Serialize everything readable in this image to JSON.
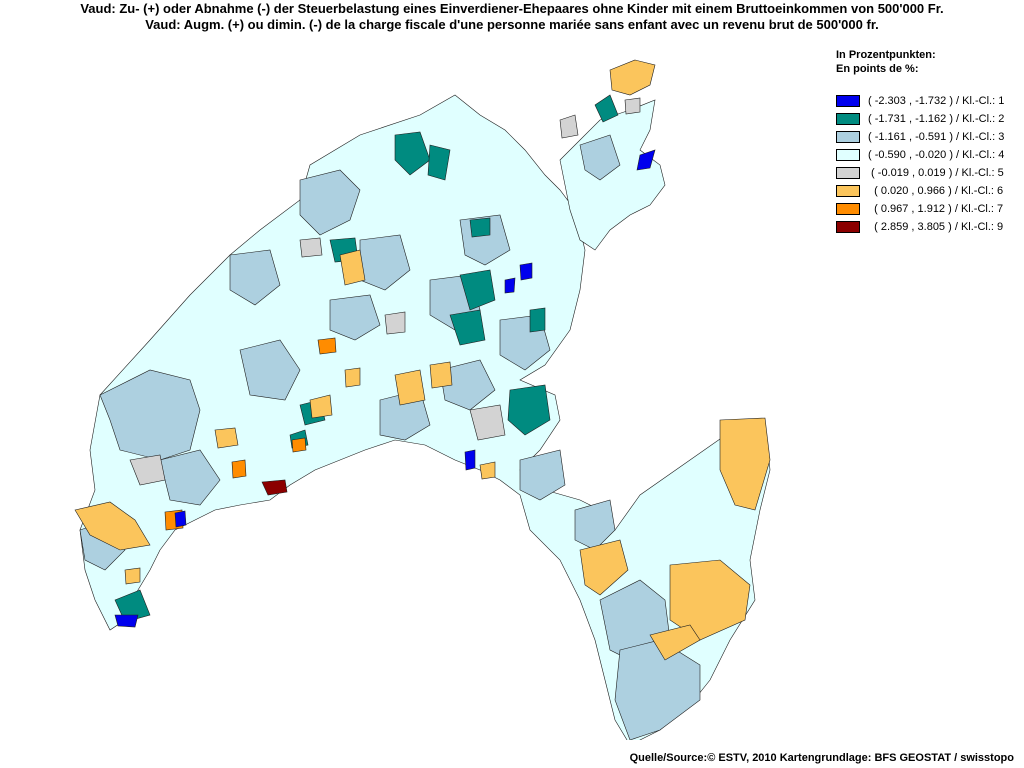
{
  "title": {
    "line1": "Vaud: Zu- (+) oder Abnahme (-) der Steuerbelastung eines Einverdiener-Ehepaares ohne Kinder mit einem Bruttoeinkommen von 500'000 Fr.",
    "line2": "Vaud: Augm. (+) ou dimin. (-) de la charge fiscale d'une personne mariée sans enfant avec un revenu brut de 500'000 fr."
  },
  "legend": {
    "title_de": "In Prozentpunkten:",
    "title_fr": "En points de %:",
    "classes": [
      {
        "label": "( -2.303 , -1.732 ) / Kl.-Cl.: 1",
        "color": "#0000ee"
      },
      {
        "label": "( -1.731 , -1.162 ) / Kl.-Cl.: 2",
        "color": "#008b80"
      },
      {
        "label": "( -1.161 , -0.591 ) / Kl.-Cl.: 3",
        "color": "#add0e0"
      },
      {
        "label": "( -0.590 , -0.020 ) / Kl.-Cl.: 4",
        "color": "#e0ffff"
      },
      {
        "label": " ( -0.019 , 0.019 ) / Kl.-Cl.: 5",
        "color": "#d3d3d3"
      },
      {
        "label": "  ( 0.020 , 0.966 ) / Kl.-Cl.: 6",
        "color": "#fbc55c"
      },
      {
        "label": "  ( 0.967 , 1.912 ) / Kl.-Cl.: 7",
        "color": "#ff8c00"
      },
      {
        "label": "  ( 2.859 , 3.805 ) / Kl.-Cl.: 9",
        "color": "#8b0000"
      }
    ]
  },
  "source": "Quelle/Source:© ESTV, 2010 Kartengrundlage: BFS GEOSTAT / swisstopo"
}
